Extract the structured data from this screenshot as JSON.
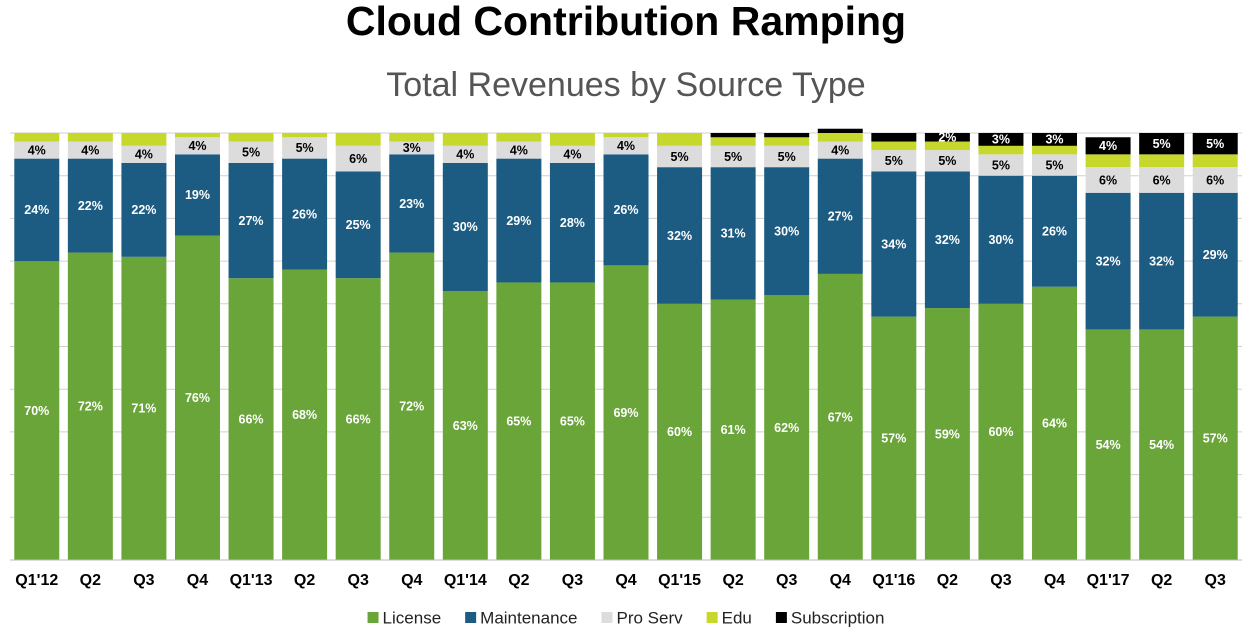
{
  "chart_data": {
    "type": "stacked_bar",
    "title": "Cloud Contribution Ramping",
    "subtitle": "Total Revenues by Source Type",
    "categories": [
      "Q1'12",
      "Q2",
      "Q3",
      "Q4",
      "Q1'13",
      "Q2",
      "Q3",
      "Q4",
      "Q1'14",
      "Q2",
      "Q3",
      "Q4",
      "Q1'15",
      "Q2",
      "Q3",
      "Q4",
      "Q1'16",
      "Q2",
      "Q3",
      "Q4",
      "Q1'17",
      "Q2",
      "Q3"
    ],
    "ylim": [
      0,
      100
    ],
    "yticks": [
      0,
      10,
      20,
      30,
      40,
      50,
      60,
      70,
      80,
      90,
      100
    ],
    "ytick_labels": false,
    "grid": true,
    "legend": "bottom",
    "series": [
      {
        "name": "License",
        "color": "#6aa53a",
        "label_color": "#ffffff",
        "values": [
          70,
          72,
          71,
          76,
          66,
          68,
          66,
          72,
          63,
          65,
          65,
          69,
          60,
          61,
          62,
          67,
          57,
          59,
          60,
          64,
          54,
          54,
          57
        ],
        "value_labels": [
          "70%",
          "72%",
          "71%",
          "76%",
          "66%",
          "68%",
          "66%",
          "72%",
          "63%",
          "65%",
          "65%",
          "69%",
          "60%",
          "61%",
          "62%",
          "67%",
          "57%",
          "59%",
          "60%",
          "64%",
          "54%",
          "54%",
          "57%"
        ]
      },
      {
        "name": "Maintenance",
        "color": "#1c5b82",
        "label_color": "#ffffff",
        "values": [
          24,
          22,
          22,
          19,
          27,
          26,
          25,
          23,
          30,
          29,
          28,
          26,
          32,
          31,
          30,
          27,
          34,
          32,
          30,
          26,
          32,
          32,
          29
        ],
        "value_labels": [
          "24%",
          "22%",
          "22%",
          "19%",
          "27%",
          "26%",
          "25%",
          "23%",
          "30%",
          "29%",
          "28%",
          "26%",
          "32%",
          "31%",
          "30%",
          "27%",
          "34%",
          "32%",
          "30%",
          "26%",
          "32%",
          "32%",
          "29%"
        ]
      },
      {
        "name": "Pro Serv",
        "color": "#dcdcdc",
        "label_color": "#000000",
        "values": [
          4,
          4,
          4,
          4,
          5,
          5,
          6,
          3,
          4,
          4,
          4,
          4,
          5,
          5,
          5,
          4,
          5,
          5,
          5,
          5,
          6,
          6,
          6
        ],
        "value_labels": [
          "4%",
          "4%",
          "4%",
          "4%",
          "5%",
          "5%",
          "6%",
          "3%",
          "4%",
          "4%",
          "4%",
          "4%",
          "5%",
          "5%",
          "5%",
          "4%",
          "5%",
          "5%",
          "5%",
          "5%",
          "6%",
          "6%",
          "6%"
        ]
      },
      {
        "name": "Edu",
        "color": "#c6d82c",
        "values": [
          2,
          2,
          3,
          1,
          2,
          1,
          3,
          2,
          3,
          2,
          3,
          1,
          3,
          2,
          2,
          2,
          2,
          2,
          2,
          2,
          3,
          3,
          3
        ]
      },
      {
        "name": "Subscription",
        "color": "#000000",
        "label_color": "#ffffff",
        "values": [
          0,
          0,
          0,
          0,
          0,
          0,
          0,
          0,
          0,
          0,
          0,
          0,
          0,
          1,
          1,
          1,
          2,
          2,
          3,
          3,
          4,
          5,
          5
        ],
        "value_labels": [
          null,
          null,
          null,
          null,
          null,
          null,
          null,
          null,
          null,
          null,
          null,
          null,
          null,
          null,
          null,
          null,
          null,
          "2%",
          "3%",
          "3%",
          "4%",
          "5%",
          "5%"
        ]
      }
    ]
  }
}
